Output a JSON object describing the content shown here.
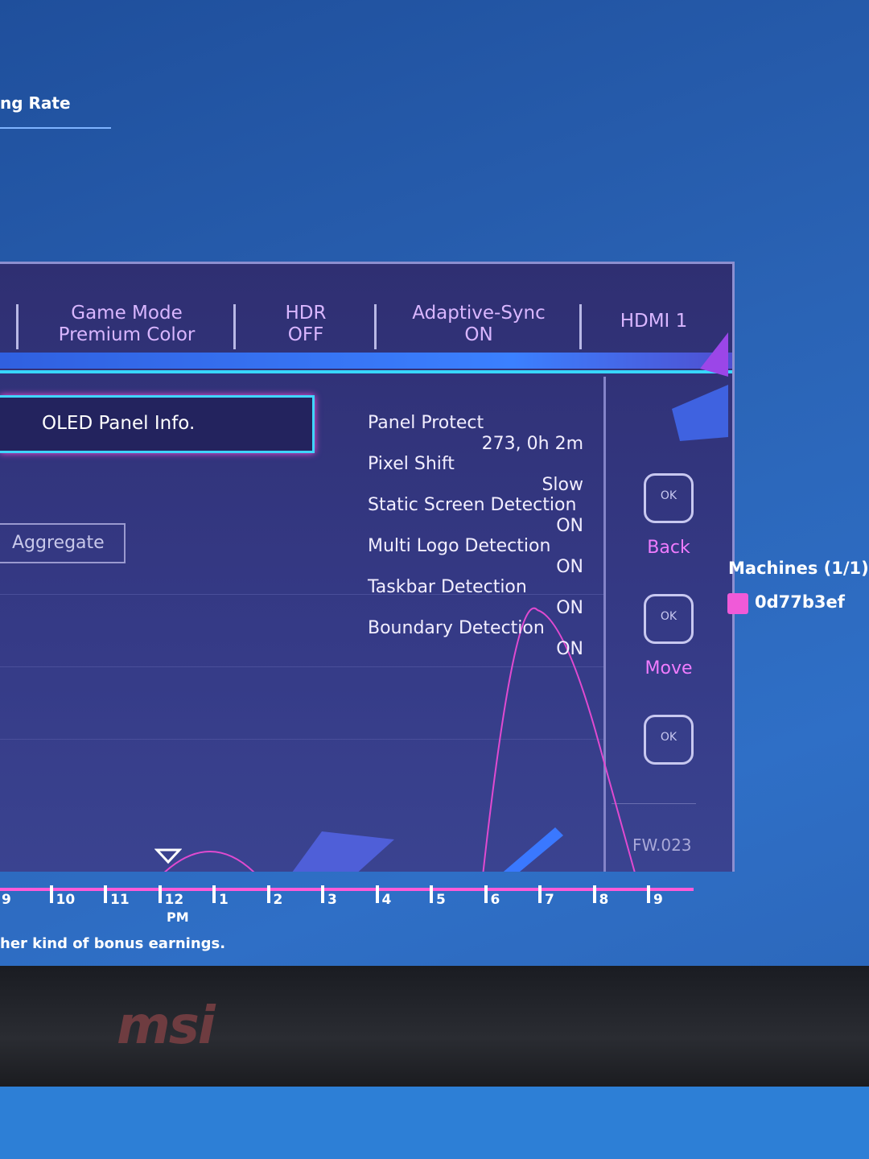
{
  "background": {
    "heading": "ng Rate",
    "legend_title": "Machines (1/1)",
    "legend_item": "0d77b3ef",
    "footer_text": "her kind of bonus earnings.",
    "axis_labels": [
      "9",
      "10",
      "11",
      "12",
      "1",
      "2",
      "3",
      "4",
      "5",
      "6",
      "7",
      "8",
      "9"
    ],
    "axis_sublabel": "PM",
    "brand": "msi"
  },
  "osd": {
    "tabs": [
      {
        "line1": "Game Mode",
        "line2": "Premium Color"
      },
      {
        "line1": "HDR",
        "line2": "OFF"
      },
      {
        "line1": "Adaptive-Sync",
        "line2": "ON"
      },
      {
        "line1": "HDMI 1"
      }
    ],
    "selected_menu": "OLED Panel Info.",
    "aggregate_button": "Aggregate",
    "items": [
      {
        "label": "Panel Protect",
        "value": "273, 0h  2m"
      },
      {
        "label": "Pixel Shift",
        "value": "Slow"
      },
      {
        "label": "Static Screen Detection",
        "value": "ON"
      },
      {
        "label": "Multi Logo Detection",
        "value": "ON"
      },
      {
        "label": "Taskbar Detection",
        "value": "ON"
      },
      {
        "label": "Boundary Detection",
        "value": "ON"
      }
    ],
    "nav": [
      {
        "icon": "OK",
        "label": "Back"
      },
      {
        "icon": "OK",
        "label": "Move"
      },
      {
        "icon": "OK"
      }
    ],
    "firmware": "FW.023"
  }
}
